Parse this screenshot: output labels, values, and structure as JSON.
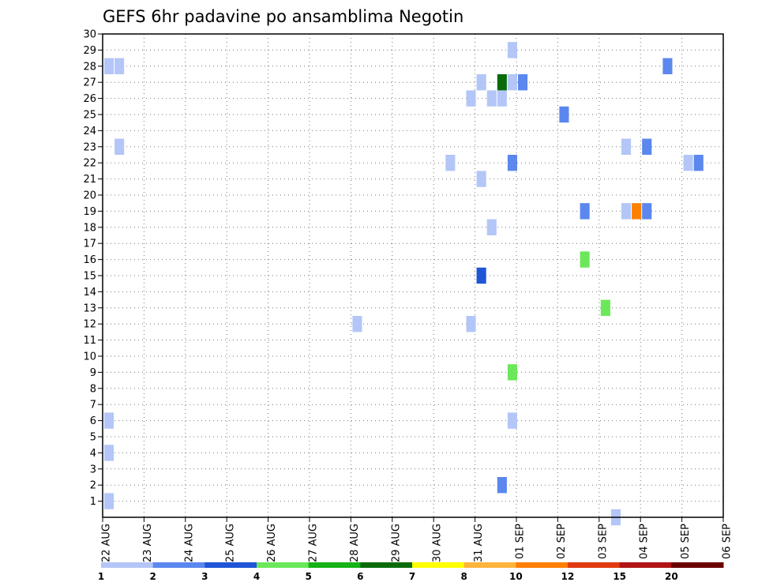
{
  "chart_data": {
    "type": "heatmap",
    "title": "GEFS 6hr padavine po ansamblima Negotin",
    "xlabel": "",
    "ylabel": "",
    "x_tick_labels": [
      "22 AUG",
      "23 AUG",
      "24 AUG",
      "25 AUG",
      "26 AUG",
      "27 AUG",
      "28 AUG",
      "29 AUG",
      "30 AUG",
      "31 AUG",
      "01 SEP",
      "02 SEP",
      "03 SEP",
      "04 SEP",
      "05 SEP",
      "06 SEP"
    ],
    "y_tick_labels": [
      "1",
      "2",
      "3",
      "4",
      "5",
      "6",
      "7",
      "8",
      "9",
      "10",
      "11",
      "12",
      "13",
      "14",
      "15",
      "16",
      "17",
      "18",
      "19",
      "20",
      "21",
      "22",
      "23",
      "24",
      "25",
      "26",
      "27",
      "28",
      "29",
      "30"
    ],
    "xlim": [
      0,
      15
    ],
    "ylim": [
      0,
      30
    ],
    "grid": true,
    "legend_placement": "bottom",
    "colorbar": {
      "labels": [
        "1",
        "2",
        "3",
        "4",
        "5",
        "6",
        "7",
        "8",
        "10",
        "12",
        "15",
        "20"
      ],
      "colors": [
        "#b3c6f7",
        "#5b87ee",
        "#1f55d6",
        "#6be85a",
        "#16b216",
        "#0b6b0b",
        "#ffff00",
        "#ffb43c",
        "#ff7f00",
        "#e23a10",
        "#b01414",
        "#6b0000"
      ]
    },
    "cells": [
      {
        "x": 0.0,
        "y": 28,
        "c": 0
      },
      {
        "x": 0.25,
        "y": 28,
        "c": 0
      },
      {
        "x": 0.25,
        "y": 23,
        "c": 0
      },
      {
        "x": 0.0,
        "y": 6,
        "c": 0
      },
      {
        "x": 0.0,
        "y": 4,
        "c": 0
      },
      {
        "x": 0.0,
        "y": 1,
        "c": 0
      },
      {
        "x": 6.0,
        "y": 12,
        "c": 0
      },
      {
        "x": 8.25,
        "y": 22,
        "c": 0
      },
      {
        "x": 8.75,
        "y": 26,
        "c": 0
      },
      {
        "x": 8.75,
        "y": 12,
        "c": 0
      },
      {
        "x": 9.0,
        "y": 27,
        "c": 0
      },
      {
        "x": 9.0,
        "y": 21,
        "c": 0
      },
      {
        "x": 9.0,
        "y": 15,
        "c": 2
      },
      {
        "x": 9.25,
        "y": 26,
        "c": 0
      },
      {
        "x": 9.25,
        "y": 18,
        "c": 0
      },
      {
        "x": 9.5,
        "y": 26,
        "c": 0
      },
      {
        "x": 9.5,
        "y": 27,
        "c": 5
      },
      {
        "x": 9.5,
        "y": 2,
        "c": 1
      },
      {
        "x": 9.75,
        "y": 29,
        "c": 0
      },
      {
        "x": 9.75,
        "y": 27,
        "c": 0
      },
      {
        "x": 9.75,
        "y": 22,
        "c": 1
      },
      {
        "x": 9.75,
        "y": 9,
        "c": 3
      },
      {
        "x": 9.75,
        "y": 6,
        "c": 0
      },
      {
        "x": 10.0,
        "y": 27,
        "c": 1
      },
      {
        "x": 11.0,
        "y": 25,
        "c": 1
      },
      {
        "x": 11.5,
        "y": 19,
        "c": 1
      },
      {
        "x": 11.5,
        "y": 16,
        "c": 3
      },
      {
        "x": 12.0,
        "y": 13,
        "c": 3
      },
      {
        "x": 12.25,
        "y": 0,
        "c": 0
      },
      {
        "x": 12.5,
        "y": 23,
        "c": 0
      },
      {
        "x": 12.5,
        "y": 19,
        "c": 0
      },
      {
        "x": 12.75,
        "y": 19,
        "c": 8
      },
      {
        "x": 13.0,
        "y": 23,
        "c": 1
      },
      {
        "x": 13.0,
        "y": 19,
        "c": 1
      },
      {
        "x": 13.5,
        "y": 28,
        "c": 1
      },
      {
        "x": 14.0,
        "y": 22,
        "c": 0
      },
      {
        "x": 14.25,
        "y": 22,
        "c": 1
      }
    ]
  }
}
